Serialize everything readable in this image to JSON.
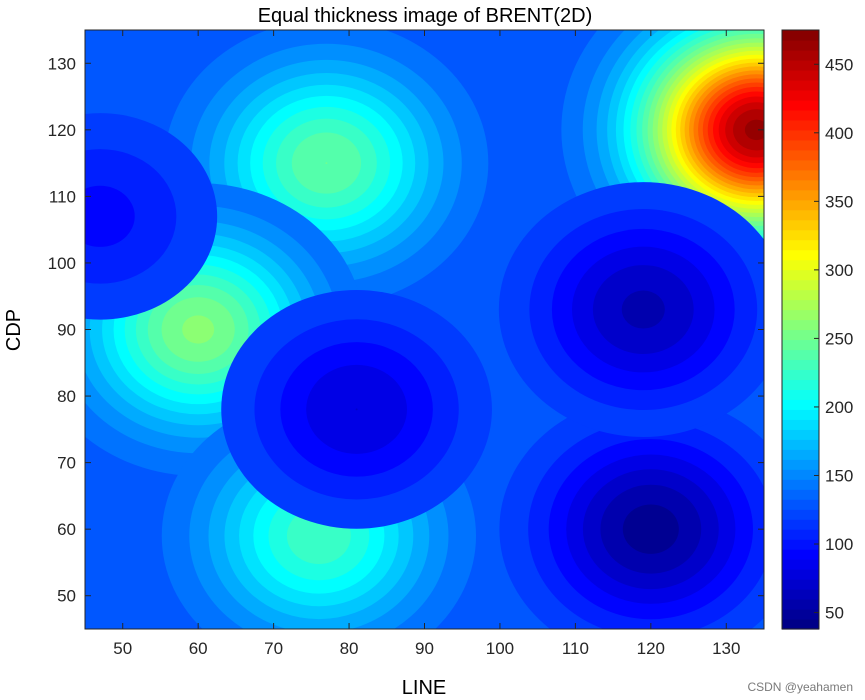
{
  "chart_data": {
    "type": "heatmap",
    "subtype": "filled-contour",
    "title": "Equal thickness image of BRENT(2D)",
    "xlabel": "LINE",
    "ylabel": "CDP",
    "xlim": [
      45,
      135
    ],
    "ylim": [
      45,
      135
    ],
    "xticks": [
      50,
      60,
      70,
      80,
      90,
      100,
      110,
      120,
      130
    ],
    "yticks": [
      50,
      60,
      70,
      80,
      90,
      100,
      110,
      120,
      130
    ],
    "colormap": "jet",
    "colorbar": {
      "range": [
        38,
        475
      ],
      "ticks": [
        50,
        100,
        150,
        200,
        250,
        300,
        350,
        400,
        450
      ]
    },
    "background_level": 130,
    "features": [
      {
        "x": 134,
        "y": 120,
        "value": 470,
        "kind": "maximum"
      },
      {
        "x": 77,
        "y": 115,
        "value": 250,
        "kind": "maximum"
      },
      {
        "x": 60,
        "y": 90,
        "value": 265,
        "kind": "maximum"
      },
      {
        "x": 76,
        "y": 59,
        "value": 235,
        "kind": "maximum"
      },
      {
        "x": 120,
        "y": 60,
        "value": 40,
        "kind": "minimum"
      },
      {
        "x": 119,
        "y": 93,
        "value": 55,
        "kind": "minimum"
      },
      {
        "x": 81,
        "y": 78,
        "value": 70,
        "kind": "minimum"
      },
      {
        "x": 47,
        "y": 107,
        "value": 90,
        "kind": "minimum"
      }
    ]
  },
  "watermark": "CSDN @yeahamen"
}
